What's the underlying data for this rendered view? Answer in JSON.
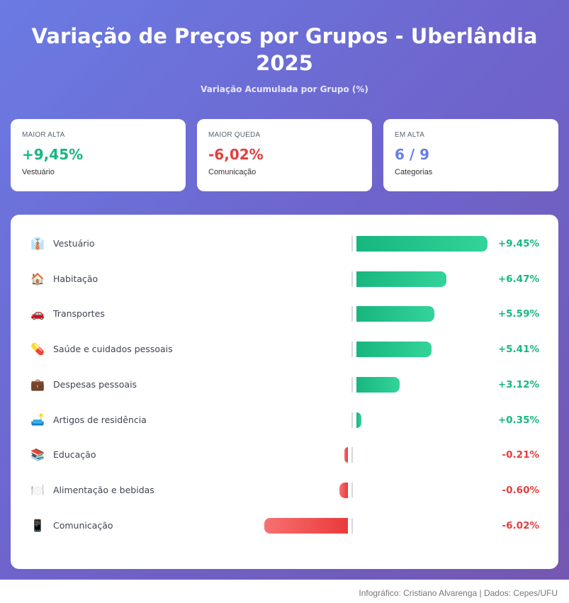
{
  "header": {
    "title": "Variação de Preços por Grupos - Uberlândia 2025",
    "subtitle": "Variação Acumulada por Grupo (%)"
  },
  "stats": [
    {
      "label": "MAIOR ALTA",
      "value": "+9,45%",
      "sub": "Vestuário",
      "color": "#17b67f"
    },
    {
      "label": "MAIOR QUEDA",
      "value": "-6,02%",
      "sub": "Comunicação",
      "color": "#e53e3e"
    },
    {
      "label": "EM ALTA",
      "value": "6 / 9",
      "sub": "Categorias",
      "color": "#667eea"
    }
  ],
  "chart_data": {
    "type": "bar",
    "orientation": "horizontal",
    "categories": [
      "Vestuário",
      "Habitação",
      "Transportes",
      "Saúde e cuidados pessoais",
      "Despesas pessoais",
      "Artigos de residência",
      "Educação",
      "Alimentação e bebidas",
      "Comunicação"
    ],
    "icons": [
      "👔",
      "🏠",
      "🚗",
      "💊",
      "💼",
      "🛋️",
      "📚",
      "🍽️",
      "📱"
    ],
    "values": [
      9.45,
      6.47,
      5.59,
      5.41,
      3.12,
      0.35,
      -0.21,
      -0.6,
      -6.02
    ],
    "labels": [
      "+9.45%",
      "+6.47%",
      "+5.59%",
      "+5.41%",
      "+3.12%",
      "+0.35%",
      "-0.21%",
      "-0.60%",
      "-6.02%"
    ],
    "colors": {
      "positive": "#17b67f",
      "negative": "#e53e3e"
    }
  },
  "footer": "Infográfico: Cristiano Alvarenga | Dados: Cepes/UFU"
}
